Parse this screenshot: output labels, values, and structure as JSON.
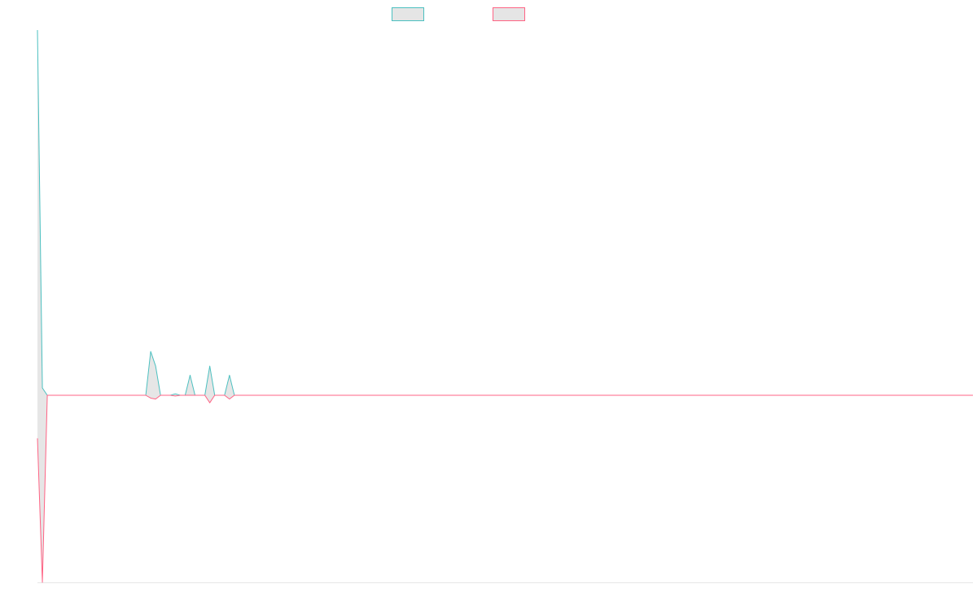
{
  "chart_data": {
    "type": "line",
    "title": "",
    "xlabel": "",
    "ylabel": "",
    "grid": false,
    "legend_position": "top-center",
    "x_count": 191,
    "xlim": [
      0,
      190
    ],
    "ylim": [
      -100,
      100
    ],
    "series": [
      {
        "color": "#4bc0c0",
        "fill": "rgba(200,200,200,0.45)",
        "points": [
          [
            0,
            100
          ],
          [
            1,
            2
          ],
          [
            2,
            0
          ],
          [
            22,
            0
          ],
          [
            23,
            12
          ],
          [
            24,
            8
          ],
          [
            25,
            0
          ],
          [
            27,
            0
          ],
          [
            28,
            0.4
          ],
          [
            29,
            0
          ],
          [
            30,
            0
          ],
          [
            31,
            5.5
          ],
          [
            32,
            0
          ],
          [
            34,
            0
          ],
          [
            35,
            8
          ],
          [
            36,
            0
          ],
          [
            38,
            0
          ],
          [
            39,
            5.5
          ],
          [
            40,
            0
          ],
          [
            190,
            0
          ]
        ]
      },
      {
        "color": "#ff6384",
        "fill": "rgba(200,200,200,0.45)",
        "points": [
          [
            0,
            -23
          ],
          [
            1,
            -100
          ],
          [
            2,
            0
          ],
          [
            22,
            0
          ],
          [
            23,
            -1.5
          ],
          [
            24,
            -2
          ],
          [
            25,
            0
          ],
          [
            27,
            0
          ],
          [
            28,
            -0.4
          ],
          [
            29,
            0
          ],
          [
            34,
            0
          ],
          [
            35,
            -4
          ],
          [
            36,
            0
          ],
          [
            38,
            0
          ],
          [
            39,
            -2
          ],
          [
            40,
            0
          ],
          [
            190,
            0
          ]
        ]
      }
    ]
  }
}
